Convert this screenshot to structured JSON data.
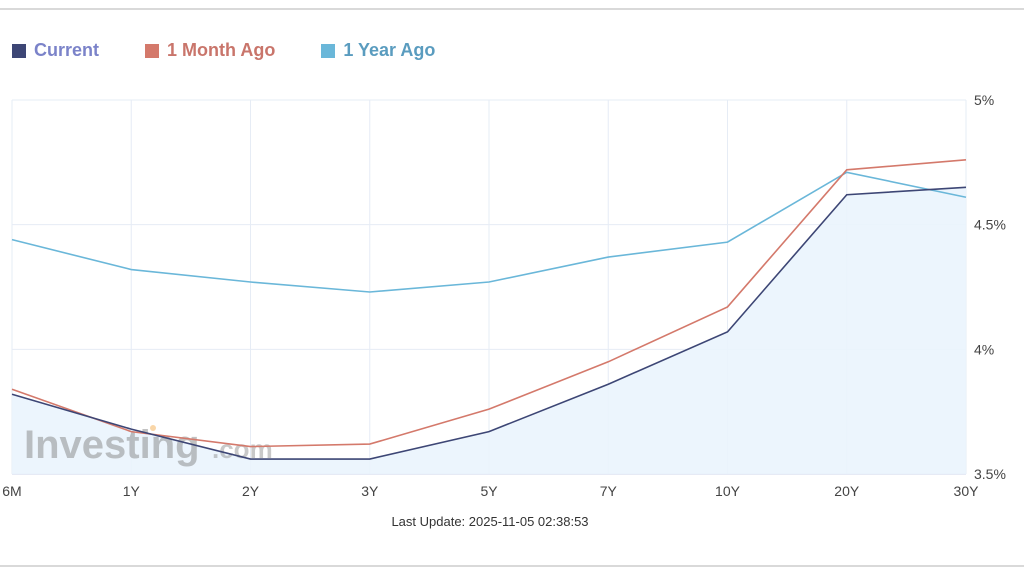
{
  "legend": [
    {
      "label": "Current",
      "color": "#3d4675",
      "text_color": "#7b83c9"
    },
    {
      "label": "1 Month Ago",
      "color": "#d4796b",
      "text_color": "#c9756b"
    },
    {
      "label": "1 Year Ago",
      "color": "#6ab7d9",
      "text_color": "#5a9cbf"
    }
  ],
  "footer": {
    "last_update": "Last Update: 2025-11-05 02:38:53"
  },
  "watermark": {
    "brand": "Investing",
    "suffix": ".com"
  },
  "chart_data": {
    "type": "line",
    "title": "",
    "xlabel": "",
    "ylabel": "",
    "categories": [
      "6M",
      "1Y",
      "2Y",
      "3Y",
      "5Y",
      "7Y",
      "10Y",
      "20Y",
      "30Y"
    ],
    "series": [
      {
        "name": "Current",
        "color": "#3d4675",
        "filled": true,
        "values": [
          3.82,
          3.68,
          3.56,
          3.56,
          3.67,
          3.86,
          4.07,
          4.62,
          4.65
        ]
      },
      {
        "name": "1 Month Ago",
        "color": "#d4796b",
        "values": [
          3.84,
          3.67,
          3.61,
          3.62,
          3.76,
          3.95,
          4.17,
          4.72,
          4.76
        ]
      },
      {
        "name": "1 Year Ago",
        "color": "#6ab7d9",
        "values": [
          4.44,
          4.32,
          4.27,
          4.23,
          4.27,
          4.37,
          4.43,
          4.71,
          4.61
        ]
      }
    ],
    "yticks": [
      "3.5%",
      "4%",
      "4.5%",
      "5%"
    ],
    "ylim": [
      3.5,
      5.0
    ],
    "grid": true,
    "legend_position": "top-left"
  }
}
